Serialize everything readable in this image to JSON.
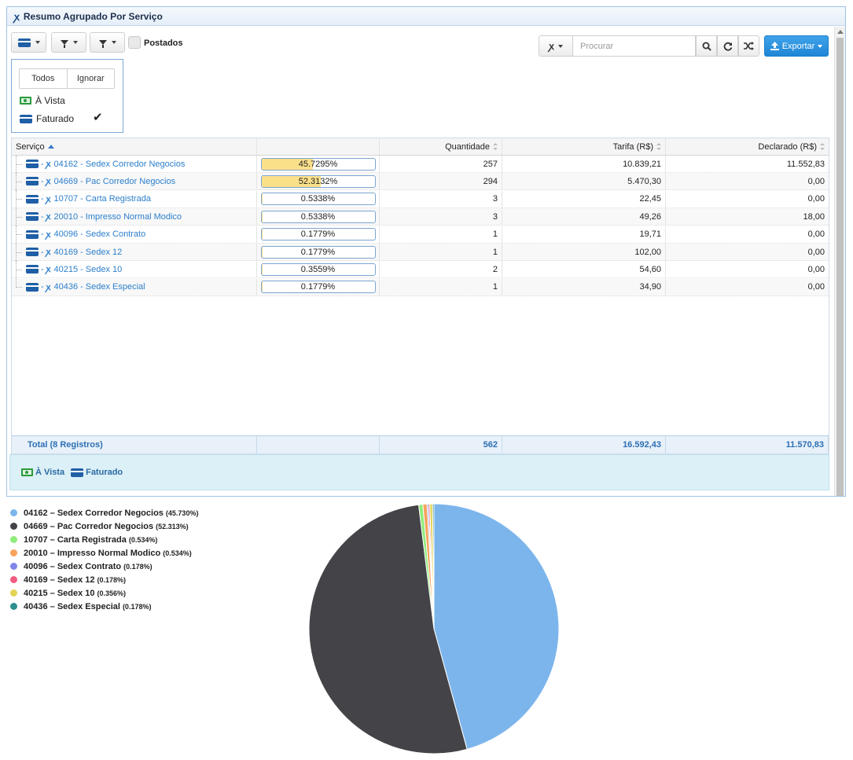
{
  "panel": {
    "title": "Resumo Agrupado Por Serviço"
  },
  "toolbar": {
    "postados_label": "Postados",
    "search_placeholder": "Procurar",
    "export_label": "Exportar"
  },
  "filter": {
    "todos": "Todos",
    "ignorar": "Ignorar",
    "items": [
      {
        "label": "À Vista",
        "icon": "cash-icon",
        "checked": false
      },
      {
        "label": "Faturado",
        "icon": "card-icon",
        "checked": true
      }
    ]
  },
  "grid": {
    "columns": {
      "servico": "Serviço",
      "bar": "",
      "quantidade": "Quantidade",
      "tarifa": "Tarifa (R$)",
      "declarado": "Declarado (R$)"
    },
    "rows": [
      {
        "code": "04162",
        "name": "Sedex Corredor Negocios",
        "percent_label": "45.7295%",
        "percent": 45.7295,
        "quantidade": "257",
        "tarifa": "10.839,21",
        "declarado": "11.552,83"
      },
      {
        "code": "04669",
        "name": "Pac Corredor Negocios",
        "percent_label": "52.3132%",
        "percent": 52.3132,
        "quantidade": "294",
        "tarifa": "5.470,30",
        "declarado": "0,00"
      },
      {
        "code": "10707",
        "name": "Carta Registrada",
        "percent_label": "0.5338%",
        "percent": 0.5338,
        "quantidade": "3",
        "tarifa": "22,45",
        "declarado": "0,00"
      },
      {
        "code": "20010",
        "name": "Impresso Normal Modico",
        "percent_label": "0.5338%",
        "percent": 0.5338,
        "quantidade": "3",
        "tarifa": "49,26",
        "declarado": "18,00"
      },
      {
        "code": "40096",
        "name": "Sedex Contrato",
        "percent_label": "0.1779%",
        "percent": 0.1779,
        "quantidade": "1",
        "tarifa": "19,71",
        "declarado": "0,00"
      },
      {
        "code": "40169",
        "name": "Sedex 12",
        "percent_label": "0.1779%",
        "percent": 0.1779,
        "quantidade": "1",
        "tarifa": "102,00",
        "declarado": "0,00"
      },
      {
        "code": "40215",
        "name": "Sedex 10",
        "percent_label": "0.3559%",
        "percent": 0.3559,
        "quantidade": "2",
        "tarifa": "54,60",
        "declarado": "0,00"
      },
      {
        "code": "40436",
        "name": "Sedex Especial",
        "percent_label": "0.1779%",
        "percent": 0.1779,
        "quantidade": "1",
        "tarifa": "34,90",
        "declarado": "0,00"
      }
    ],
    "total": {
      "label": "Total (8 Registros)",
      "quantidade": "562",
      "tarifa": "16.592,43",
      "declarado": "11.570,83"
    }
  },
  "legend_strip": [
    {
      "label": "À Vista",
      "icon": "cash-icon"
    },
    {
      "label": "Faturado",
      "icon": "card-icon"
    }
  ],
  "chart_data": {
    "type": "pie",
    "slices": [
      {
        "label": "04162 – Sedex Corredor Negocios",
        "pct_label": "(45.730%)",
        "value": 45.73,
        "color": "#7cb5ec"
      },
      {
        "label": "04669 – Pac Corredor Negocios",
        "pct_label": "(52.313%)",
        "value": 52.313,
        "color": "#434348"
      },
      {
        "label": "10707 – Carta Registrada",
        "pct_label": "(0.534%)",
        "value": 0.534,
        "color": "#90ed7d"
      },
      {
        "label": "20010 – Impresso Normal Modico",
        "pct_label": "(0.534%)",
        "value": 0.534,
        "color": "#f7a35c"
      },
      {
        "label": "40096 – Sedex Contrato",
        "pct_label": "(0.178%)",
        "value": 0.178,
        "color": "#8085e9"
      },
      {
        "label": "40169 – Sedex 12",
        "pct_label": "(0.178%)",
        "value": 0.178,
        "color": "#f15c80"
      },
      {
        "label": "40215 – Sedex 10",
        "pct_label": "(0.356%)",
        "value": 0.356,
        "color": "#e4d354"
      },
      {
        "label": "40436 – Sedex Especial",
        "pct_label": "(0.178%)",
        "value": 0.178,
        "color": "#2b908f"
      }
    ],
    "legend_position": "left"
  }
}
